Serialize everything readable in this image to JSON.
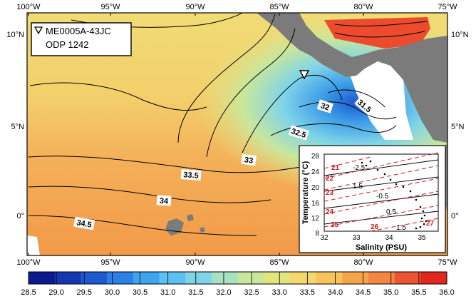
{
  "map": {
    "top_lon_labels": [
      "100°W",
      "95°W",
      "90°W",
      "85°W",
      "80°W",
      "75°W"
    ],
    "bottom_lon_labels": [
      "100°W",
      "95°W",
      "90°W",
      "85°W",
      "80°W",
      "75°W"
    ],
    "left_lat_labels": [
      "10°N",
      "5°N",
      "0°"
    ],
    "right_lat_labels": [
      "10°N",
      "5°N",
      "0°"
    ],
    "legend": {
      "marker_label": "ME0005A-43JC",
      "site_label": "ODP 1242"
    },
    "contour_labels": [
      "32",
      "31.5",
      "32.5",
      "33",
      "33.5",
      "34",
      "34.5"
    ],
    "colors": {
      "land": "#7b7b7b",
      "nodata": "#ffffff",
      "contour": "#000000"
    }
  },
  "colorbar": {
    "ticks": [
      "28.5",
      "29.0",
      "29.5",
      "30.0",
      "30.5",
      "31.0",
      "31.5",
      "32.0",
      "32.5",
      "33.0",
      "33.5",
      "34.0",
      "34.5",
      "35.0",
      "35.5",
      "36.0"
    ],
    "colors": [
      "#0b1a8c",
      "#1537b0",
      "#1d5ad0",
      "#2a80e6",
      "#3fa3ef",
      "#5cc0f0",
      "#7fd4e8",
      "#a7e2c2",
      "#c8e79c",
      "#e2e57e",
      "#f3d86b",
      "#f7c45c",
      "#f6a64a",
      "#f38640",
      "#ec5432",
      "#e0271f"
    ]
  },
  "inset": {
    "ylabel": "Temperature (°C)",
    "xlabel": "Salinity (PSU)",
    "yticks": [
      "28",
      "24",
      "20",
      "16",
      "12",
      "8"
    ],
    "xticks": [
      "32",
      "33",
      "34",
      "35"
    ],
    "density_labels_black": [
      "-2.5",
      "1.5",
      "-0.5",
      "0.5",
      "1.5"
    ],
    "density_labels_red": [
      "21",
      "22",
      "23",
      "24",
      "25",
      "26",
      "27"
    ]
  }
}
